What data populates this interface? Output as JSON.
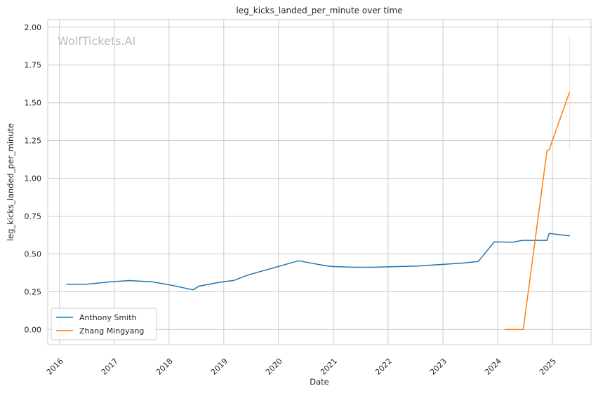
{
  "chart_data": {
    "type": "line",
    "title": "leg_kicks_landed_per_minute over time",
    "xlabel": "Date",
    "ylabel": "leg_kicks_landed_per_minute",
    "watermark": "WolfTickets.AI",
    "x_ticks": [
      "2016",
      "2017",
      "2018",
      "2019",
      "2020",
      "2021",
      "2022",
      "2023",
      "2024",
      "2025"
    ],
    "y_ticks": [
      "0.00",
      "0.25",
      "0.50",
      "0.75",
      "1.00",
      "1.25",
      "1.50",
      "1.75",
      "2.00"
    ],
    "xlim": [
      "2015-10-15",
      "2025-09-15"
    ],
    "ylim": [
      -0.1,
      2.05
    ],
    "grid": true,
    "legend_position": "lower-left",
    "series": [
      {
        "name": "Anthony Smith",
        "color": "#1f77b4",
        "points": [
          [
            "2016-02-20",
            0.3
          ],
          [
            "2016-07-01",
            0.3
          ],
          [
            "2016-12-10",
            0.316
          ],
          [
            "2017-04-10",
            0.324
          ],
          [
            "2017-09-10",
            0.316
          ],
          [
            "2018-02-01",
            0.29
          ],
          [
            "2018-06-10",
            0.263
          ],
          [
            "2018-07-20",
            0.287
          ],
          [
            "2018-11-20",
            0.31
          ],
          [
            "2019-03-10",
            0.325
          ],
          [
            "2019-06-10",
            0.36
          ],
          [
            "2020-05-15",
            0.455
          ],
          [
            "2020-09-15",
            0.432
          ],
          [
            "2020-12-10",
            0.418
          ],
          [
            "2021-05-15",
            0.412
          ],
          [
            "2021-09-15",
            0.412
          ],
          [
            "2022-07-15",
            0.42
          ],
          [
            "2023-05-15",
            0.44
          ],
          [
            "2023-08-25",
            0.45
          ],
          [
            "2023-12-10",
            0.58
          ],
          [
            "2024-04-10",
            0.578
          ],
          [
            "2024-06-15",
            0.59
          ],
          [
            "2024-11-25",
            0.59
          ],
          [
            "2024-12-10",
            0.636
          ],
          [
            "2025-04-25",
            0.62
          ]
        ]
      },
      {
        "name": "Zhang Mingyang",
        "color": "#ff7f0e",
        "points": [
          [
            "2024-02-20",
            0.0
          ],
          [
            "2024-06-20",
            0.0
          ],
          [
            "2024-11-25",
            1.18
          ],
          [
            "2024-12-10",
            1.19
          ],
          [
            "2025-04-25",
            1.57
          ]
        ],
        "band": {
          "x": "2025-04-25",
          "low": 1.19,
          "high": 1.95
        }
      }
    ]
  }
}
